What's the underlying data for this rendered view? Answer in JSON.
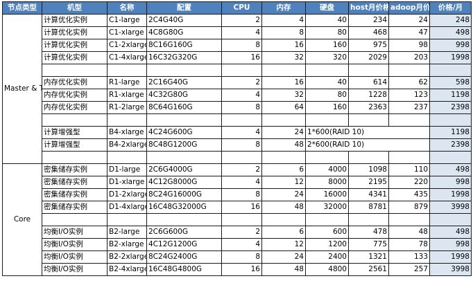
{
  "headers": [
    "节点类型",
    "机型",
    "名称",
    "配置",
    "CPU",
    "内存",
    "硬盘",
    "host月价格",
    "adoop月价",
    "价格/月"
  ],
  "groups": [
    {
      "label": "Master & Task"
    },
    {
      "label": "Core"
    }
  ],
  "rows": [
    {
      "type": "计算优化实例",
      "name": "C1-large",
      "config": "2C4G40G",
      "cpu": "2",
      "mem": "4",
      "disk": "40",
      "host_price": "234",
      "hadoop_price": "24",
      "price": "248"
    },
    {
      "type": "计算优化实例",
      "name": "C1-xlarge",
      "config": "4C8G80G",
      "cpu": "4",
      "mem": "8",
      "disk": "80",
      "host_price": "468",
      "hadoop_price": "47",
      "price": "498"
    },
    {
      "type": "计算优化实例",
      "name": "C1-2xlarge",
      "config": "8C16G160G",
      "cpu": "8",
      "mem": "16",
      "disk": "160",
      "host_price": "975",
      "hadoop_price": "98",
      "price": "998"
    },
    {
      "type": "计算优化实例",
      "name": "C1-4xlarge",
      "config": "16C32G320G",
      "cpu": "16",
      "mem": "32",
      "disk": "320",
      "host_price": "2029",
      "hadoop_price": "203",
      "price": "1998"
    },
    {
      "type": "内存优化实例",
      "name": "R1-large",
      "config": "2C16G40G",
      "cpu": "2",
      "mem": "16",
      "disk": "40",
      "host_price": "614",
      "hadoop_price": "62",
      "price": "598"
    },
    {
      "type": "内存优化实例",
      "name": "R1-xlarge",
      "config": "4C32G80G",
      "cpu": "4",
      "mem": "32",
      "disk": "80",
      "host_price": "1228",
      "hadoop_price": "123",
      "price": "1198"
    },
    {
      "type": "内存优化实例",
      "name": "R1-2large",
      "config": "8C64G160G",
      "cpu": "8",
      "mem": "64",
      "disk": "160",
      "host_price": "2363",
      "hadoop_price": "237",
      "price": "2398"
    },
    {
      "type": "计算增强型",
      "name": "B4-xlarge",
      "config": "4C24G600G",
      "cpu": "4",
      "mem": "24",
      "disk": "1*600(RAID 10)",
      "host_price": "",
      "hadoop_price": "",
      "price": "1198"
    },
    {
      "type": "计算增强型",
      "name": "B4-2xlarge",
      "config": "8C48G1200G",
      "cpu": "8",
      "mem": "48",
      "disk": "2*600(RAID 10)",
      "host_price": "",
      "hadoop_price": "",
      "price": "2398"
    },
    {
      "type": "密集储存实例",
      "name": "D1-large",
      "config": "2C6G4000G",
      "cpu": "2",
      "mem": "6",
      "disk": "4000",
      "host_price": "1098",
      "hadoop_price": "110",
      "price": "498"
    },
    {
      "type": "密集储存实例",
      "name": "D1-xlarge",
      "config": "4C12G8000G",
      "cpu": "4",
      "mem": "12",
      "disk": "8000",
      "host_price": "2195",
      "hadoop_price": "220",
      "price": "998"
    },
    {
      "type": "密集储存实例",
      "name": "D1-2xlarge",
      "config": "8C24G16000G",
      "cpu": "8",
      "mem": "24",
      "disk": "16000",
      "host_price": "4341",
      "hadoop_price": "435",
      "price": "1998"
    },
    {
      "type": "密集储存实例",
      "name": "D1-4xlarge",
      "config": "16C48G32000G",
      "cpu": "16",
      "mem": "48",
      "disk": "32000",
      "host_price": "8781",
      "hadoop_price": "879",
      "price": "3998"
    },
    {
      "type": "均衡I/O实例",
      "name": "B2-large",
      "config": "2C6G600G",
      "cpu": "2",
      "mem": "6",
      "disk": "600",
      "host_price": "478",
      "hadoop_price": "48",
      "price": "498"
    },
    {
      "type": "均衡I/O实例",
      "name": "B2-xlarge",
      "config": "4C12G1200G",
      "cpu": "4",
      "mem": "12",
      "disk": "1200",
      "host_price": "775",
      "hadoop_price": "78",
      "price": "998"
    },
    {
      "type": "均衡I/O实例",
      "name": "B2-2xlarge",
      "config": "8C24G2400G",
      "cpu": "8",
      "mem": "24",
      "disk": "2400",
      "host_price": "1321",
      "hadoop_price": "133",
      "price": "1998"
    },
    {
      "type": "均衡I/O实例",
      "name": "B2-4xlarge",
      "config": "16C48G4800G",
      "cpu": "16",
      "mem": "48",
      "disk": "4800",
      "host_price": "2561",
      "hadoop_price": "257",
      "price": "3998"
    }
  ]
}
